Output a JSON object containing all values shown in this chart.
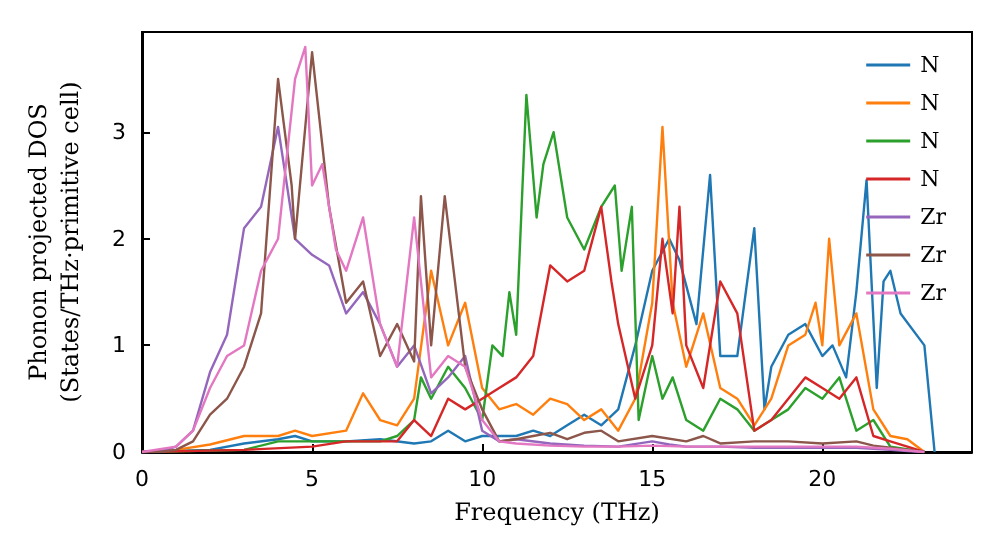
{
  "chart_data": {
    "type": "line",
    "xlabel": "Frequency (THz)",
    "ylabel": "Phonon projected DOS\n(States/THz·primitive cell)",
    "xlim": [
      0,
      24.4
    ],
    "ylim": [
      0,
      3.94
    ],
    "xticks": [
      0,
      5,
      10,
      15,
      20
    ],
    "yticks": [
      0,
      1,
      2,
      3
    ],
    "grid": false,
    "legend": "top right",
    "marker": "none",
    "line_style": "solid",
    "series": [
      {
        "name": "N",
        "color": "#1f77b4",
        "x": [
          0,
          2,
          3,
          4,
          4.5,
          5,
          6,
          7,
          8,
          8.5,
          9,
          9.5,
          10,
          11,
          11.5,
          12,
          12.5,
          13,
          13.5,
          14,
          14.5,
          15,
          15.5,
          15.8,
          16.3,
          16.7,
          17,
          17.5,
          18,
          18.3,
          18.5,
          19,
          19.5,
          20,
          20.3,
          20.7,
          21,
          21.3,
          21.6,
          21.8,
          22,
          22.3,
          23,
          23.3
        ],
        "values": [
          0,
          0.02,
          0.08,
          0.12,
          0.15,
          0.1,
          0.1,
          0.12,
          0.08,
          0.1,
          0.2,
          0.1,
          0.15,
          0.15,
          0.2,
          0.15,
          0.25,
          0.35,
          0.25,
          0.4,
          1.0,
          1.7,
          2.0,
          1.8,
          1.2,
          2.6,
          0.9,
          0.9,
          2.1,
          0.4,
          0.8,
          1.1,
          1.2,
          0.9,
          1.0,
          0.7,
          1.5,
          2.55,
          0.6,
          1.6,
          1.7,
          1.3,
          1.0,
          0
        ]
      },
      {
        "name": "N",
        "color": "#ff7f0e",
        "x": [
          0,
          1,
          2,
          3,
          4,
          4.5,
          5,
          6,
          6.5,
          7,
          7.5,
          8,
          8.5,
          9,
          9.5,
          10,
          10.5,
          11,
          11.5,
          12,
          12.5,
          13,
          13.5,
          14,
          14.5,
          15,
          15.3,
          15.6,
          16,
          16.5,
          17,
          17.5,
          18,
          18.5,
          19,
          19.5,
          19.8,
          20,
          20.2,
          20.5,
          21,
          21.5,
          22,
          22.5,
          23
        ],
        "values": [
          0,
          0.02,
          0.07,
          0.15,
          0.15,
          0.2,
          0.15,
          0.2,
          0.55,
          0.3,
          0.25,
          0.5,
          1.7,
          1.0,
          1.4,
          0.6,
          0.4,
          0.45,
          0.35,
          0.5,
          0.45,
          0.3,
          0.4,
          0.2,
          0.5,
          1.4,
          3.05,
          1.4,
          0.8,
          1.3,
          0.6,
          0.5,
          0.25,
          0.5,
          1.0,
          1.1,
          1.4,
          1.0,
          2.0,
          1.0,
          1.3,
          0.4,
          0.15,
          0.12,
          0
        ]
      },
      {
        "name": "N",
        "color": "#2ca02c",
        "x": [
          0,
          3,
          4,
          5,
          6,
          7,
          7.5,
          8,
          8.2,
          8.5,
          9,
          9.5,
          10,
          10.3,
          10.6,
          10.8,
          11,
          11.3,
          11.6,
          11.8,
          12.1,
          12.5,
          13,
          13.5,
          13.9,
          14.1,
          14.4,
          14.6,
          15,
          15.3,
          15.6,
          16,
          16.5,
          17,
          17.5,
          18,
          18.5,
          19,
          19.5,
          20,
          20.5,
          21,
          21.5,
          22,
          23
        ],
        "values": [
          0,
          0.02,
          0.1,
          0.1,
          0.1,
          0.1,
          0.15,
          0.3,
          0.7,
          0.5,
          0.8,
          0.6,
          0.3,
          1.0,
          0.9,
          1.5,
          1.1,
          3.35,
          2.2,
          2.7,
          3.0,
          2.2,
          1.9,
          2.3,
          2.5,
          1.7,
          2.3,
          0.3,
          0.9,
          0.5,
          0.7,
          0.3,
          0.2,
          0.5,
          0.4,
          0.2,
          0.3,
          0.4,
          0.6,
          0.5,
          0.7,
          0.2,
          0.3,
          0.05,
          0
        ]
      },
      {
        "name": "N",
        "color": "#d62728",
        "x": [
          0,
          3,
          5,
          6,
          7,
          7.5,
          8,
          8.5,
          9,
          9.5,
          10,
          10.5,
          11,
          11.5,
          12,
          12.5,
          13,
          13.5,
          13.8,
          14,
          14.5,
          15,
          15.3,
          15.6,
          15.8,
          16,
          16.5,
          17,
          17.5,
          18,
          18.5,
          19,
          19.5,
          20,
          20.5,
          21,
          21.5,
          22,
          22.5,
          23
        ],
        "values": [
          0,
          0.02,
          0.05,
          0.1,
          0.1,
          0.1,
          0.3,
          0.15,
          0.5,
          0.4,
          0.5,
          0.6,
          0.7,
          0.9,
          1.75,
          1.6,
          1.7,
          2.3,
          1.6,
          1.2,
          0.5,
          1.0,
          2.0,
          1.3,
          2.3,
          1.0,
          0.6,
          1.6,
          1.3,
          0.2,
          0.3,
          0.5,
          0.7,
          0.6,
          0.5,
          0.7,
          0.15,
          0.1,
          0.05,
          0
        ]
      },
      {
        "name": "Zr",
        "color": "#9467bd",
        "x": [
          0,
          0.5,
          1,
          1.5,
          2,
          2.5,
          3,
          3.5,
          4,
          4.5,
          5,
          5.5,
          6,
          6.5,
          7,
          7.5,
          8,
          8.5,
          9,
          9.5,
          10,
          10.5,
          11,
          12,
          13,
          14,
          15,
          15.5,
          16,
          17,
          18,
          19,
          20,
          21,
          21.5,
          22,
          22.5,
          23
        ],
        "values": [
          0,
          0,
          0.05,
          0.2,
          0.75,
          1.1,
          2.1,
          2.3,
          3.05,
          2.0,
          1.85,
          1.75,
          1.3,
          1.5,
          1.2,
          0.8,
          1.0,
          0.55,
          0.7,
          0.9,
          0.2,
          0.1,
          0.12,
          0.08,
          0.06,
          0.05,
          0.1,
          0.07,
          0.05,
          0.05,
          0.04,
          0.04,
          0.04,
          0.04,
          0.03,
          0.02,
          0.01,
          0
        ]
      },
      {
        "name": "Zr",
        "color": "#8c564b",
        "x": [
          0,
          0.5,
          1,
          1.5,
          2,
          2.5,
          3,
          3.5,
          4,
          4.4,
          4.5,
          5,
          5.5,
          6,
          6.5,
          7,
          7.5,
          8,
          8.2,
          8.5,
          8.9,
          9.5,
          10,
          10.5,
          11,
          11.5,
          12,
          12.5,
          13,
          13.5,
          14,
          15,
          16,
          16.5,
          17,
          18,
          19,
          20,
          21,
          21.5,
          22,
          22.5,
          23
        ],
        "values": [
          0,
          0,
          0.02,
          0.1,
          0.35,
          0.5,
          0.8,
          1.3,
          3.5,
          2.5,
          2.0,
          3.75,
          2.3,
          1.4,
          1.6,
          0.9,
          1.2,
          0.85,
          2.4,
          1.0,
          2.4,
          0.8,
          0.4,
          0.1,
          0.12,
          0.15,
          0.18,
          0.12,
          0.18,
          0.2,
          0.1,
          0.15,
          0.1,
          0.15,
          0.08,
          0.1,
          0.1,
          0.08,
          0.1,
          0.06,
          0.04,
          0.02,
          0
        ]
      },
      {
        "name": "Zr",
        "color": "#e377c2",
        "x": [
          0,
          1,
          1.5,
          2,
          2.5,
          3,
          3.5,
          4,
          4.5,
          4.8,
          5,
          5.3,
          5.7,
          6,
          6.5,
          7,
          7.5,
          8,
          8.5,
          9,
          9.5,
          10,
          10.5,
          11,
          12,
          13,
          14,
          15,
          16,
          17,
          18,
          19,
          20,
          21,
          22,
          23
        ],
        "values": [
          0,
          0.05,
          0.2,
          0.6,
          0.9,
          1.0,
          1.7,
          2.0,
          3.5,
          3.8,
          2.5,
          2.7,
          1.9,
          1.7,
          2.2,
          1.2,
          0.8,
          2.2,
          0.7,
          0.9,
          0.8,
          0.3,
          0.1,
          0.08,
          0.06,
          0.05,
          0.05,
          0.06,
          0.05,
          0.05,
          0.05,
          0.05,
          0.05,
          0.05,
          0.03,
          0
        ]
      }
    ]
  }
}
